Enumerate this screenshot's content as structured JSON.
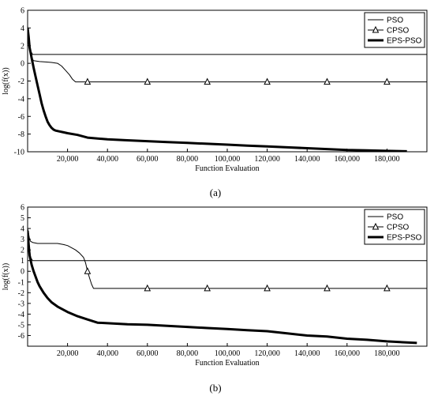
{
  "chart_data": [
    {
      "type": "line",
      "panel_label": "(a)",
      "xlabel": "Function Evaluation",
      "ylabel": "log(f(x))",
      "xlim": [
        0,
        200000
      ],
      "ylim": [
        -10,
        6
      ],
      "x_ticks": [
        20000,
        40000,
        60000,
        80000,
        100000,
        120000,
        140000,
        160000,
        180000
      ],
      "x_tick_labels": [
        "20,000",
        "40,000",
        "60,000",
        "80,000",
        "100,000",
        "120,000",
        "140,000",
        "160,000",
        "180,000"
      ],
      "y_ticks": [
        6,
        4,
        2,
        0,
        -2,
        -4,
        -6,
        -8,
        -10
      ],
      "y_tick_labels": [
        "6",
        "4",
        "2",
        "0",
        "-2",
        "-4",
        "-6",
        "-8",
        "-10"
      ],
      "legend_position": "top-right",
      "grid": false,
      "series": [
        {
          "name": "PSO",
          "style": "thin",
          "color": "#000000",
          "x": [
            0,
            500,
            1000,
            1500,
            2500,
            200000
          ],
          "y": [
            4.2,
            3.2,
            2.2,
            1.4,
            1.0,
            1.0
          ]
        },
        {
          "name": "CPSO",
          "style": "thin-triangle",
          "color": "#000000",
          "x": [
            0,
            500,
            1000,
            2000,
            3000,
            6000,
            9000,
            12000,
            15000,
            17000,
            19000,
            21000,
            22500,
            24000,
            30000,
            60000,
            90000,
            120000,
            150000,
            180000,
            200000
          ],
          "y": [
            3.8,
            2.5,
            1.6,
            0.6,
            0.3,
            0.2,
            0.15,
            0.1,
            0.0,
            -0.3,
            -0.8,
            -1.3,
            -1.8,
            -2.1,
            -2.1,
            -2.1,
            -2.1,
            -2.1,
            -2.1,
            -2.1,
            -2.1
          ],
          "markers_x": [
            30000,
            60000,
            90000,
            120000,
            150000,
            180000
          ]
        },
        {
          "name": "EPS-PSO",
          "style": "thick",
          "color": "#000000",
          "x": [
            0,
            500,
            1000,
            2000,
            3000,
            4000,
            5000,
            6000,
            7000,
            8000,
            9000,
            10000,
            11000,
            12000,
            13000,
            14000,
            16000,
            18000,
            20000,
            25000,
            30000,
            40000,
            50000,
            60000,
            70000,
            80000,
            90000,
            100000,
            110000,
            120000,
            130000,
            140000,
            150000,
            160000,
            170000,
            180000,
            190000
          ],
          "y": [
            4.0,
            3.0,
            1.8,
            0.6,
            -0.5,
            -1.5,
            -2.5,
            -3.5,
            -4.5,
            -5.3,
            -6.0,
            -6.6,
            -7.0,
            -7.3,
            -7.5,
            -7.6,
            -7.7,
            -7.8,
            -7.9,
            -8.1,
            -8.4,
            -8.6,
            -8.7,
            -8.8,
            -8.9,
            -9.0,
            -9.1,
            -9.2,
            -9.3,
            -9.4,
            -9.5,
            -9.6,
            -9.7,
            -9.8,
            -9.85,
            -9.9,
            -9.95
          ]
        }
      ]
    },
    {
      "type": "line",
      "panel_label": "(b)",
      "xlabel": "Function Evaluation",
      "ylabel": "log(f(x))",
      "xlim": [
        0,
        200000
      ],
      "ylim": [
        -7,
        6
      ],
      "x_ticks": [
        20000,
        40000,
        60000,
        80000,
        100000,
        120000,
        140000,
        160000,
        180000
      ],
      "x_tick_labels": [
        "20,000",
        "40,000",
        "60,000",
        "80,000",
        "100,000",
        "120,000",
        "140,000",
        "160,000",
        "180,000"
      ],
      "y_ticks": [
        6,
        5,
        4,
        3,
        2,
        1,
        0,
        -1,
        -2,
        -3,
        -4,
        -5,
        -6
      ],
      "y_tick_labels": [
        "6",
        "5",
        "4",
        "3",
        "2",
        "1",
        "0",
        "-1",
        "-2",
        "-3",
        "-4",
        "-5",
        "-6"
      ],
      "legend_position": "top-right",
      "grid": false,
      "series": [
        {
          "name": "PSO",
          "style": "thin",
          "color": "#000000",
          "x": [
            0,
            500,
            1000,
            1500,
            2500,
            200000
          ],
          "y": [
            4.0,
            3.0,
            2.0,
            1.3,
            1.0,
            1.0
          ]
        },
        {
          "name": "CPSO",
          "style": "thin-triangle",
          "color": "#000000",
          "x": [
            0,
            500,
            1000,
            1500,
            2500,
            5000,
            10000,
            15000,
            18000,
            20000,
            22000,
            24000,
            26000,
            28000,
            29000,
            30000,
            31000,
            32000,
            33000,
            60000,
            90000,
            120000,
            150000,
            180000,
            200000
          ],
          "y": [
            4.0,
            3.5,
            3.0,
            2.8,
            2.7,
            2.6,
            2.6,
            2.6,
            2.5,
            2.4,
            2.2,
            2.0,
            1.7,
            1.3,
            0.8,
            0.0,
            -0.6,
            -1.2,
            -1.6,
            -1.6,
            -1.6,
            -1.6,
            -1.6,
            -1.6,
            -1.6
          ],
          "markers_x": [
            30000,
            60000,
            90000,
            120000,
            150000,
            180000
          ]
        },
        {
          "name": "EPS-PSO",
          "style": "thick",
          "color": "#000000",
          "x": [
            0,
            500,
            1000,
            2000,
            3000,
            4000,
            5000,
            6000,
            8000,
            10000,
            12000,
            15000,
            20000,
            25000,
            30000,
            35000,
            40000,
            50000,
            60000,
            70000,
            80000,
            90000,
            100000,
            110000,
            120000,
            130000,
            140000,
            150000,
            160000,
            170000,
            180000,
            190000,
            195000
          ],
          "y": [
            3.8,
            2.5,
            1.5,
            0.6,
            0.0,
            -0.5,
            -1.0,
            -1.4,
            -2.0,
            -2.5,
            -2.9,
            -3.3,
            -3.8,
            -4.2,
            -4.5,
            -4.8,
            -4.85,
            -4.95,
            -5.0,
            -5.1,
            -5.2,
            -5.3,
            -5.4,
            -5.5,
            -5.6,
            -5.8,
            -6.0,
            -6.1,
            -6.3,
            -6.4,
            -6.55,
            -6.65,
            -6.7
          ]
        }
      ]
    }
  ]
}
